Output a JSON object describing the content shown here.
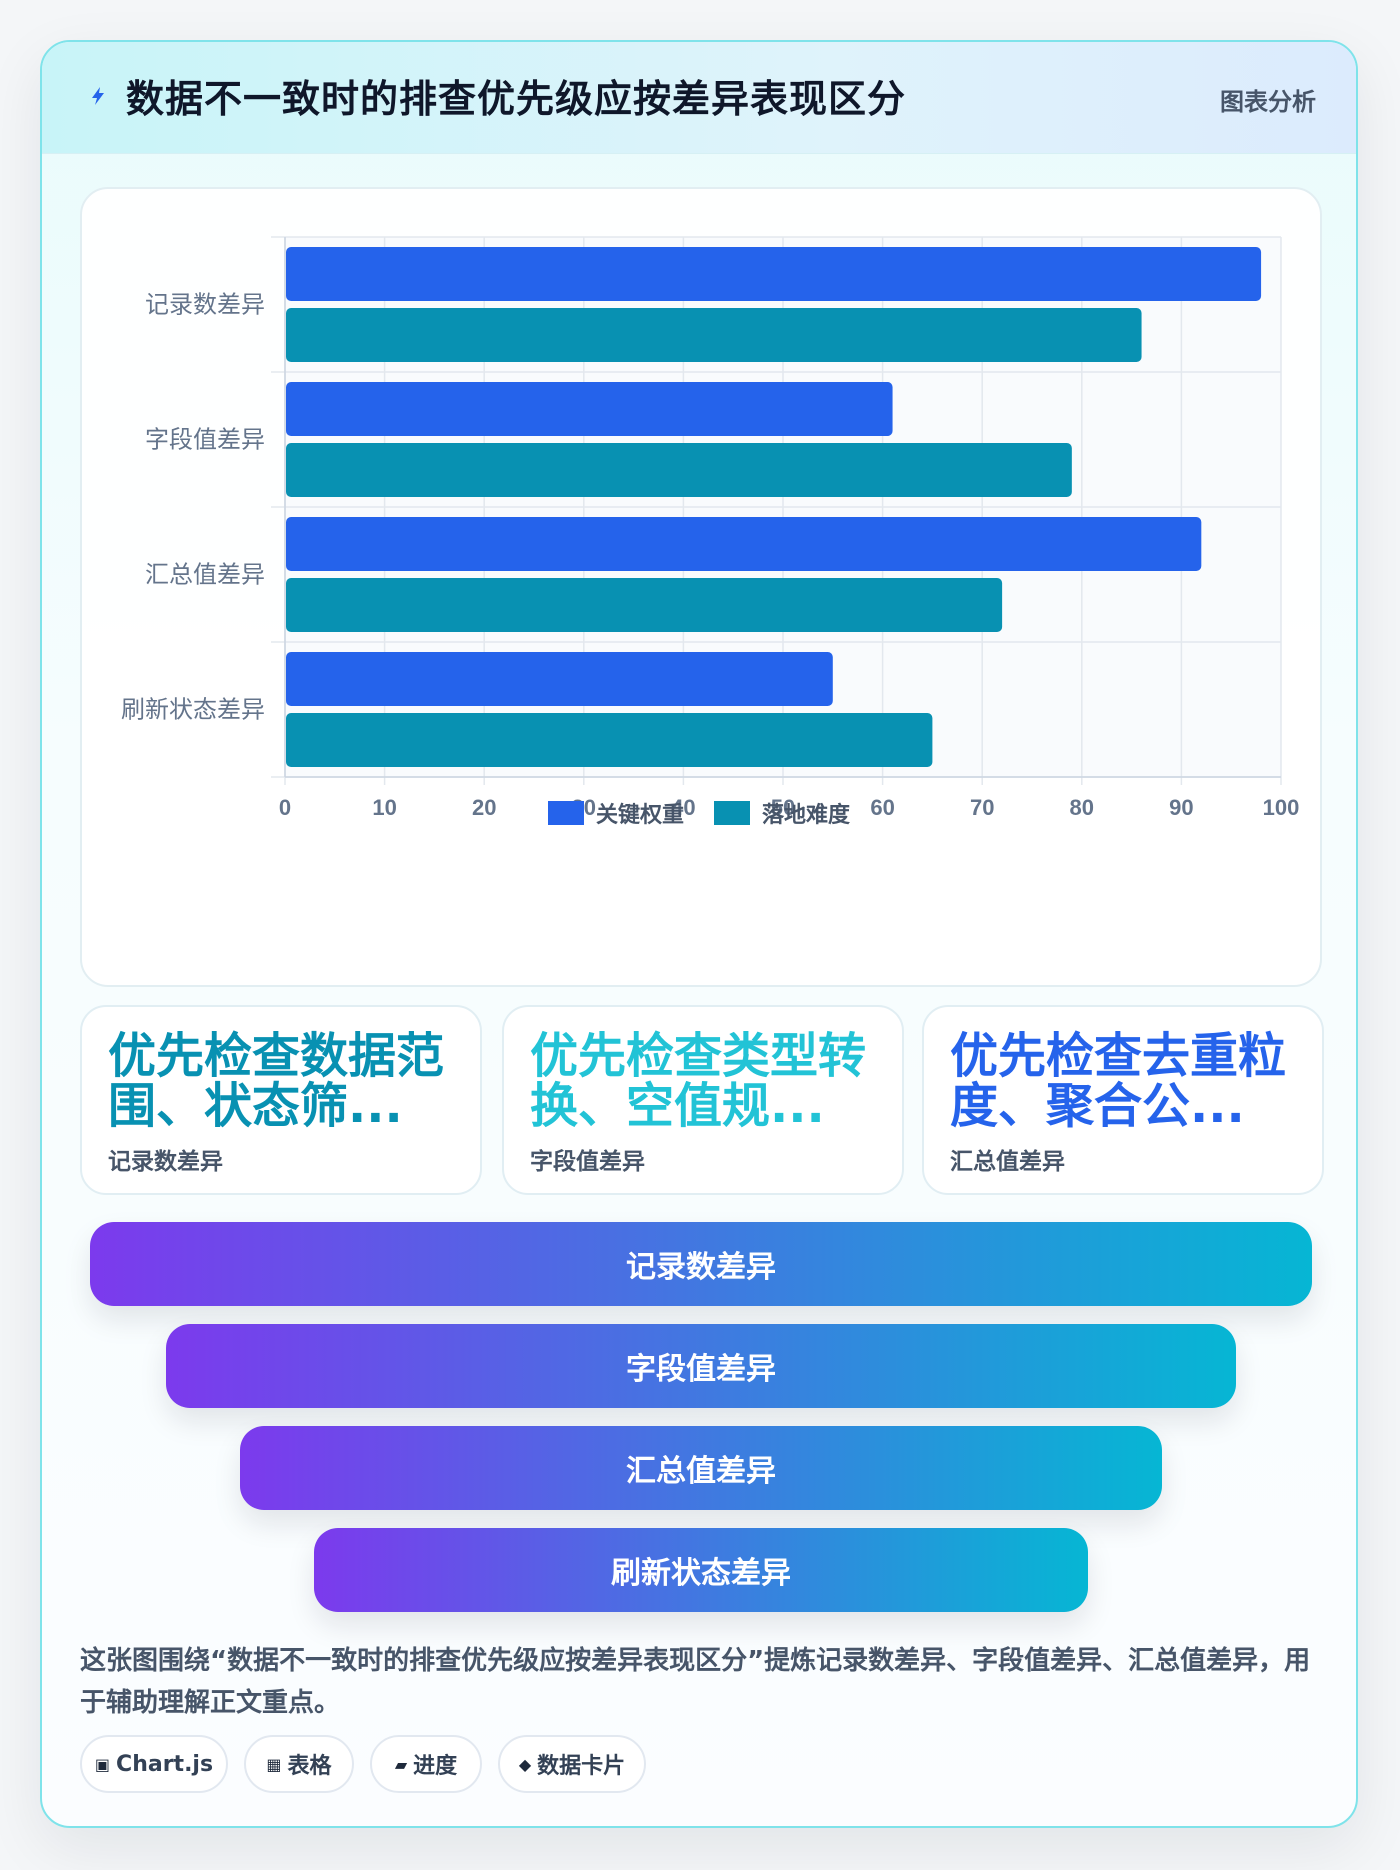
{
  "header": {
    "title": "数据不一致时的排查优先级应按差异表现区分",
    "tag": "图表分析",
    "icon": "lightning-icon"
  },
  "chart_data": {
    "type": "bar",
    "orientation": "horizontal",
    "categories": [
      "记录数差异",
      "字段值差异",
      "汇总值差异",
      "刷新状态差异"
    ],
    "series": [
      {
        "name": "关键权重",
        "color": "#2563eb",
        "values": [
          98,
          61,
          92,
          55
        ]
      },
      {
        "name": "落地难度",
        "color": "#0891b2",
        "values": [
          86,
          79,
          72,
          65
        ]
      }
    ],
    "xlim": [
      0,
      100
    ],
    "xticks": [
      0,
      10,
      20,
      30,
      40,
      50,
      60,
      70,
      80,
      90,
      100
    ],
    "grid": true,
    "legend_position": "bottom"
  },
  "stats": [
    {
      "value": "优先检查数据范围、状态筛...",
      "label": "记录数差异",
      "color": "#0891b2"
    },
    {
      "value": "优先检查类型转换、空值规...",
      "label": "字段值差异",
      "color": "#22c3d6"
    },
    {
      "value": "优先检查去重粒度、聚合公...",
      "label": "汇总值差异",
      "color": "#2563eb"
    }
  ],
  "funnel": [
    "记录数差异",
    "字段值差异",
    "汇总值差异",
    "刷新状态差异"
  ],
  "description": "这张图围绕“数据不一致时的排查优先级应按差异表现区分”提炼记录数差异、字段值差异、汇总值差异，用于辅助理解正文重点。",
  "chips": [
    {
      "icon": "▣",
      "label": "Chart.js"
    },
    {
      "icon": "▦",
      "label": "表格"
    },
    {
      "icon": "▰",
      "label": "进度"
    },
    {
      "icon": "◆",
      "label": "数据卡片"
    }
  ]
}
